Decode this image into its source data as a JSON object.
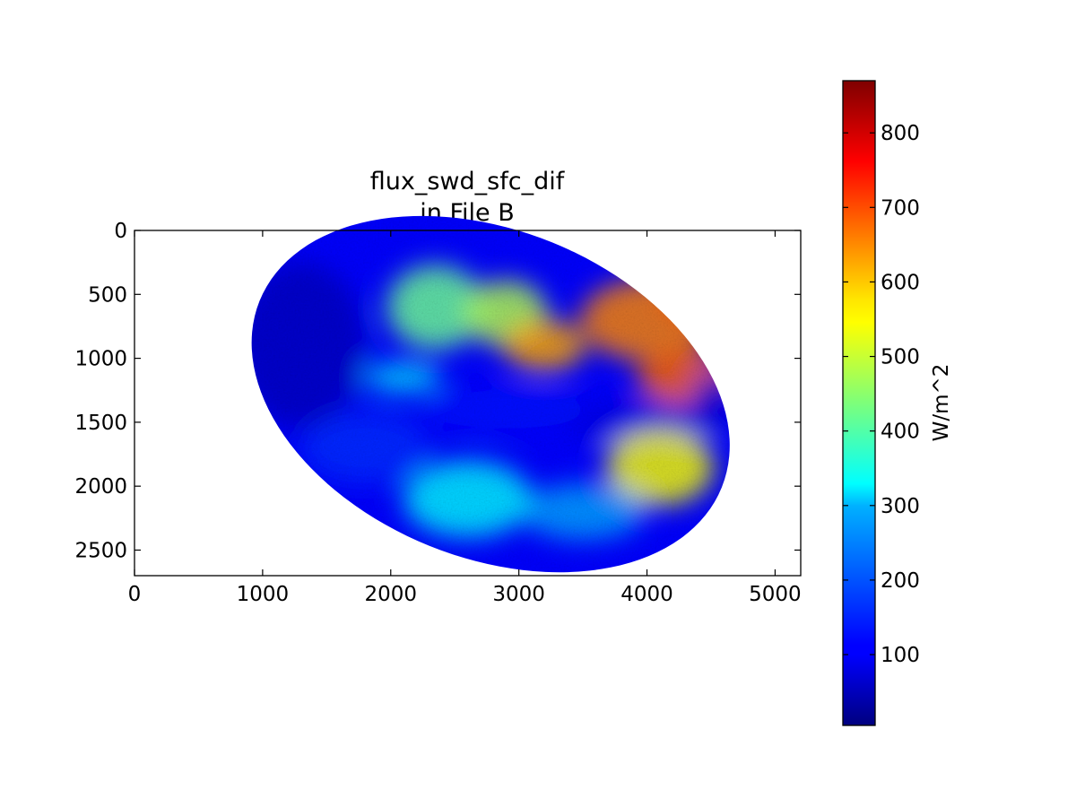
{
  "chart_data": {
    "type": "heatmap",
    "title": "flux_swd_sfc_dif",
    "subtitle": "in File B",
    "xlabel": "",
    "ylabel": "",
    "xlim": [
      0,
      5200
    ],
    "ylim": [
      2700,
      0
    ],
    "y_inverted": true,
    "x_ticks": [
      0,
      1000,
      2000,
      3000,
      4000,
      5000
    ],
    "y_ticks": [
      0,
      500,
      1000,
      1500,
      2000,
      2500
    ],
    "grid": false,
    "colormap": "jet",
    "colorbar": {
      "label": "W/m^2",
      "range": [
        5,
        870
      ],
      "ticks": [
        100,
        200,
        300,
        400,
        500,
        600,
        700,
        800
      ]
    },
    "disk": {
      "center_x": 2800,
      "center_y": 1300,
      "x_extent": [
        835,
        4725
      ],
      "y_extent": [
        0,
        2560
      ]
    },
    "field_regions": [
      {
        "cx": 1300,
        "cy": 900,
        "rx": 500,
        "ry": 650,
        "value": 60
      },
      {
        "cx": 2350,
        "cy": 600,
        "rx": 380,
        "ry": 330,
        "value": 420
      },
      {
        "cx": 2900,
        "cy": 650,
        "rx": 320,
        "ry": 260,
        "value": 480
      },
      {
        "cx": 3200,
        "cy": 900,
        "rx": 320,
        "ry": 200,
        "value": 620
      },
      {
        "cx": 4000,
        "cy": 700,
        "rx": 520,
        "ry": 320,
        "value": 650
      },
      {
        "cx": 4400,
        "cy": 500,
        "rx": 280,
        "ry": 220,
        "value": 700
      },
      {
        "cx": 4300,
        "cy": 1150,
        "rx": 380,
        "ry": 220,
        "value": 680
      },
      {
        "cx": 3900,
        "cy": 1500,
        "rx": 600,
        "ry": 160,
        "value": 90
      },
      {
        "cx": 2900,
        "cy": 1400,
        "rx": 650,
        "ry": 150,
        "value": 120
      },
      {
        "cx": 4100,
        "cy": 1850,
        "rx": 420,
        "ry": 300,
        "value": 540
      },
      {
        "cx": 3500,
        "cy": 2200,
        "rx": 480,
        "ry": 220,
        "value": 250
      },
      {
        "cx": 2600,
        "cy": 2100,
        "rx": 500,
        "ry": 300,
        "value": 320
      },
      {
        "cx": 1800,
        "cy": 1700,
        "rx": 500,
        "ry": 280,
        "value": 150
      },
      {
        "cx": 2100,
        "cy": 1150,
        "rx": 300,
        "ry": 120,
        "value": 300
      },
      {
        "cx": 4500,
        "cy": 1350,
        "rx": 150,
        "ry": 250,
        "value": 80
      }
    ]
  }
}
